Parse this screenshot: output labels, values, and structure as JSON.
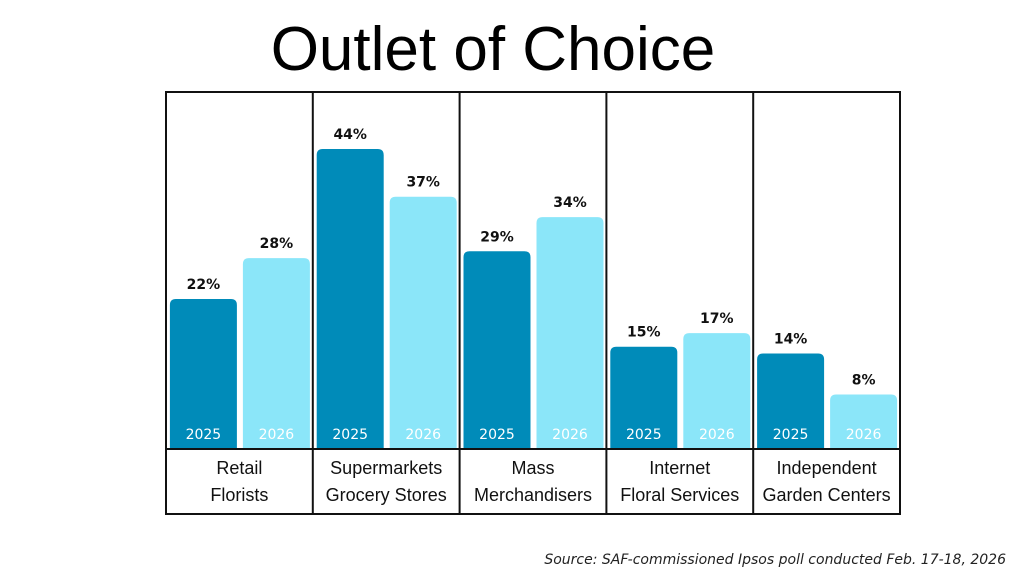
{
  "chart_data": {
    "type": "bar",
    "title": "Outlet of Choice",
    "categories": [
      {
        "line1": "Retail",
        "line2": "Florists"
      },
      {
        "line1": "Supermarkets",
        "line2": "Grocery Stores"
      },
      {
        "line1": "Mass",
        "line2": "Merchandisers"
      },
      {
        "line1": "Internet",
        "line2": "Floral Services"
      },
      {
        "line1": "Independent",
        "line2": "Garden Centers"
      }
    ],
    "series": [
      {
        "name": "2025",
        "color": "#008bb9",
        "label_color": "#ffffff",
        "values": [
          22,
          44,
          29,
          15,
          14
        ]
      },
      {
        "name": "2026",
        "color": "#8be6f9",
        "label_color": "#ffffff",
        "values": [
          28,
          37,
          34,
          17,
          8
        ]
      }
    ],
    "value_suffix": "%",
    "xlabel": "",
    "ylabel": "",
    "ylim": [
      0,
      52
    ],
    "grid": false,
    "legend": "none",
    "source": "Source: SAF-commissioned Ipsos poll conducted Feb. 17-18, 2026"
  }
}
